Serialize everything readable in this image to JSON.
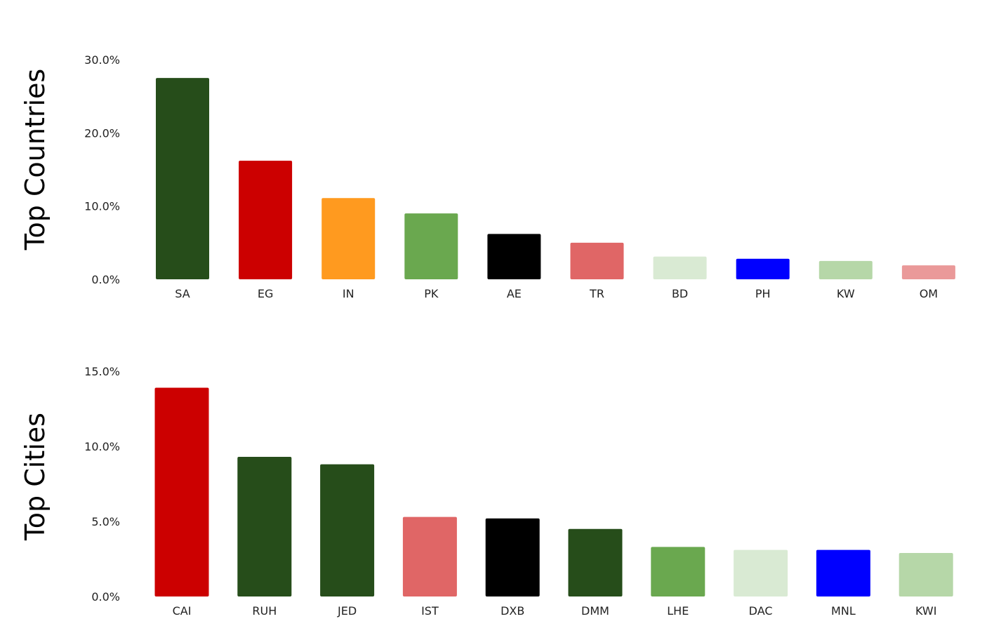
{
  "chart_data": [
    {
      "type": "bar",
      "title": "Top Countries",
      "categories": [
        "SA",
        "EG",
        "IN",
        "PK",
        "AE",
        "TR",
        "BD",
        "PH",
        "KW",
        "OM"
      ],
      "values": [
        27.5,
        16.2,
        11.1,
        9.0,
        6.2,
        5.0,
        3.1,
        2.8,
        2.5,
        1.9
      ],
      "colors": [
        "#264d1a",
        "#cc0000",
        "#ff9a1f",
        "#6aa84f",
        "#000000",
        "#e06666",
        "#d9ead3",
        "#0000ff",
        "#b6d7a8",
        "#ea9999"
      ],
      "yticks": [
        "0.0%",
        "10.0%",
        "20.0%",
        "30.0%"
      ],
      "ylim": [
        0,
        30
      ],
      "grid": false,
      "legend": "none"
    },
    {
      "type": "bar",
      "title": "Top Cities",
      "categories": [
        "CAI",
        "RUH",
        "JED",
        "IST",
        "DXB",
        "DMM",
        "LHE",
        "DAC",
        "MNL",
        "KWI"
      ],
      "values": [
        13.9,
        9.3,
        8.8,
        5.3,
        5.2,
        4.5,
        3.3,
        3.1,
        3.1,
        2.9
      ],
      "colors": [
        "#cc0000",
        "#264d1a",
        "#264d1a",
        "#e06666",
        "#000000",
        "#264d1a",
        "#6aa84f",
        "#d9ead3",
        "#0000ff",
        "#b6d7a8"
      ],
      "yticks": [
        "0.0%",
        "5.0%",
        "10.0%",
        "15.0%"
      ],
      "ylim": [
        0,
        15
      ],
      "grid": false,
      "legend": "none"
    }
  ]
}
